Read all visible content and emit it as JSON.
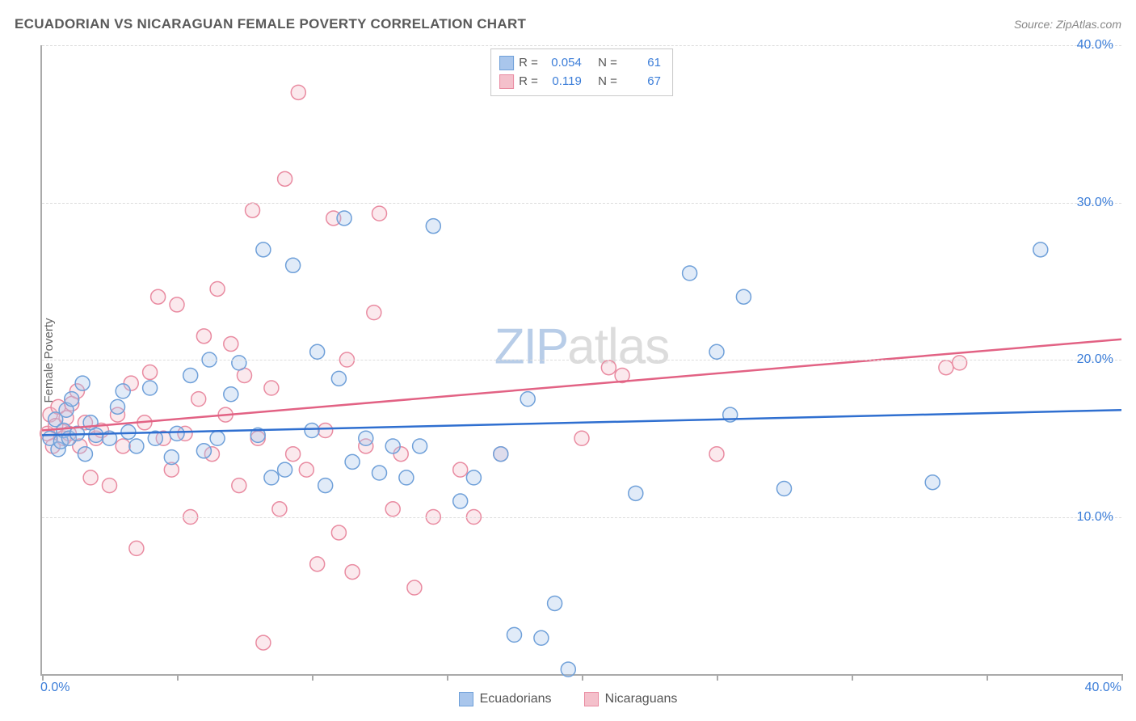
{
  "title": "ECUADORIAN VS NICARAGUAN FEMALE POVERTY CORRELATION CHART",
  "source_label": "Source: ZipAtlas.com",
  "y_axis_label": "Female Poverty",
  "watermark": {
    "zip": "ZIP",
    "atlas": "atlas"
  },
  "chart": {
    "type": "scatter",
    "xlim": [
      0,
      40
    ],
    "ylim": [
      0,
      40
    ],
    "x_tick_positions": [
      0,
      5,
      10,
      15,
      20,
      25,
      30,
      35,
      40
    ],
    "y_gridlines": [
      10,
      20,
      30,
      40
    ],
    "x_axis_min_label": "0.0%",
    "x_axis_max_label": "40.0%",
    "y_tick_labels": {
      "10": "10.0%",
      "20": "20.0%",
      "30": "30.0%",
      "40": "40.0%"
    },
    "background_color": "#ffffff",
    "grid_color": "#dcdcdc",
    "axis_color": "#aaaaaa",
    "label_color": "#3b7dd8",
    "marker_radius": 9,
    "marker_stroke_width": 1.5,
    "marker_fill_opacity": 0.35,
    "trend_line_width": 2.5
  },
  "series": [
    {
      "key": "ecuadorians",
      "label": "Ecuadorians",
      "color_fill": "#a9c6ec",
      "color_stroke": "#6fa0d9",
      "trend_color": "#2f6fd0",
      "R": "0.054",
      "N": "61",
      "trend": {
        "y_at_x0": 15.2,
        "y_at_x40": 16.8
      },
      "points": [
        [
          0.3,
          15.0
        ],
        [
          0.5,
          16.2
        ],
        [
          0.6,
          14.3
        ],
        [
          0.7,
          14.8
        ],
        [
          0.8,
          15.5
        ],
        [
          0.9,
          16.8
        ],
        [
          1.0,
          15.0
        ],
        [
          1.1,
          17.5
        ],
        [
          1.3,
          15.3
        ],
        [
          1.5,
          18.5
        ],
        [
          1.6,
          14.0
        ],
        [
          1.8,
          16.0
        ],
        [
          2.0,
          15.2
        ],
        [
          2.5,
          15.0
        ],
        [
          2.8,
          17.0
        ],
        [
          3.0,
          18.0
        ],
        [
          3.2,
          15.4
        ],
        [
          3.5,
          14.5
        ],
        [
          4.0,
          18.2
        ],
        [
          4.2,
          15.0
        ],
        [
          4.8,
          13.8
        ],
        [
          5.0,
          15.3
        ],
        [
          5.5,
          19.0
        ],
        [
          6.0,
          14.2
        ],
        [
          6.2,
          20.0
        ],
        [
          6.5,
          15.0
        ],
        [
          7.0,
          17.8
        ],
        [
          7.3,
          19.8
        ],
        [
          8.0,
          15.2
        ],
        [
          8.2,
          27.0
        ],
        [
          8.5,
          12.5
        ],
        [
          9.0,
          13.0
        ],
        [
          9.3,
          26.0
        ],
        [
          10.0,
          15.5
        ],
        [
          10.2,
          20.5
        ],
        [
          10.5,
          12.0
        ],
        [
          11.0,
          18.8
        ],
        [
          11.2,
          29.0
        ],
        [
          11.5,
          13.5
        ],
        [
          12.0,
          15.0
        ],
        [
          12.5,
          12.8
        ],
        [
          13.0,
          14.5
        ],
        [
          13.5,
          12.5
        ],
        [
          14.0,
          14.5
        ],
        [
          14.5,
          28.5
        ],
        [
          15.5,
          11.0
        ],
        [
          16.0,
          12.5
        ],
        [
          17.0,
          14.0
        ],
        [
          17.5,
          2.5
        ],
        [
          18.0,
          17.5
        ],
        [
          18.5,
          2.3
        ],
        [
          19.0,
          4.5
        ],
        [
          19.5,
          0.3
        ],
        [
          22.0,
          11.5
        ],
        [
          24.0,
          25.5
        ],
        [
          25.0,
          20.5
        ],
        [
          25.5,
          16.5
        ],
        [
          26.0,
          24.0
        ],
        [
          27.5,
          11.8
        ],
        [
          33.0,
          12.2
        ],
        [
          37.0,
          27.0
        ]
      ]
    },
    {
      "key": "nicaraguans",
      "label": "Nicaraguans",
      "color_fill": "#f4c0cb",
      "color_stroke": "#e98ba1",
      "trend_color": "#e26284",
      "R": "0.119",
      "N": "67",
      "trend": {
        "y_at_x0": 15.5,
        "y_at_x40": 21.3
      },
      "points": [
        [
          0.2,
          15.3
        ],
        [
          0.3,
          16.5
        ],
        [
          0.4,
          14.5
        ],
        [
          0.5,
          15.8
        ],
        [
          0.6,
          17.0
        ],
        [
          0.8,
          15.0
        ],
        [
          0.9,
          16.3
        ],
        [
          1.0,
          15.3
        ],
        [
          1.1,
          17.2
        ],
        [
          1.3,
          18.0
        ],
        [
          1.4,
          14.5
        ],
        [
          1.6,
          16.0
        ],
        [
          1.8,
          12.5
        ],
        [
          2.0,
          15.0
        ],
        [
          2.2,
          15.5
        ],
        [
          2.5,
          12.0
        ],
        [
          2.8,
          16.5
        ],
        [
          3.0,
          14.5
        ],
        [
          3.3,
          18.5
        ],
        [
          3.5,
          8.0
        ],
        [
          3.8,
          16.0
        ],
        [
          4.0,
          19.2
        ],
        [
          4.3,
          24.0
        ],
        [
          4.5,
          15.0
        ],
        [
          4.8,
          13.0
        ],
        [
          5.0,
          23.5
        ],
        [
          5.3,
          15.3
        ],
        [
          5.5,
          10.0
        ],
        [
          5.8,
          17.5
        ],
        [
          6.0,
          21.5
        ],
        [
          6.3,
          14.0
        ],
        [
          6.5,
          24.5
        ],
        [
          6.8,
          16.5
        ],
        [
          7.0,
          21.0
        ],
        [
          7.3,
          12.0
        ],
        [
          7.5,
          19.0
        ],
        [
          7.8,
          29.5
        ],
        [
          8.0,
          15.0
        ],
        [
          8.2,
          2.0
        ],
        [
          8.5,
          18.2
        ],
        [
          8.8,
          10.5
        ],
        [
          9.0,
          31.5
        ],
        [
          9.3,
          14.0
        ],
        [
          9.5,
          37.0
        ],
        [
          9.8,
          13.0
        ],
        [
          10.2,
          7.0
        ],
        [
          10.5,
          15.5
        ],
        [
          10.8,
          29.0
        ],
        [
          11.0,
          9.0
        ],
        [
          11.3,
          20.0
        ],
        [
          11.5,
          6.5
        ],
        [
          12.0,
          14.5
        ],
        [
          12.3,
          23.0
        ],
        [
          12.5,
          29.3
        ],
        [
          13.0,
          10.5
        ],
        [
          13.3,
          14.0
        ],
        [
          13.8,
          5.5
        ],
        [
          14.5,
          10.0
        ],
        [
          15.5,
          13.0
        ],
        [
          16.0,
          10.0
        ],
        [
          17.0,
          14.0
        ],
        [
          20.0,
          15.0
        ],
        [
          21.0,
          19.5
        ],
        [
          21.5,
          19.0
        ],
        [
          25.0,
          14.0
        ],
        [
          33.5,
          19.5
        ],
        [
          34.0,
          19.8
        ]
      ]
    }
  ],
  "legend_stats": {
    "R_label": "R =",
    "N_label": "N ="
  }
}
